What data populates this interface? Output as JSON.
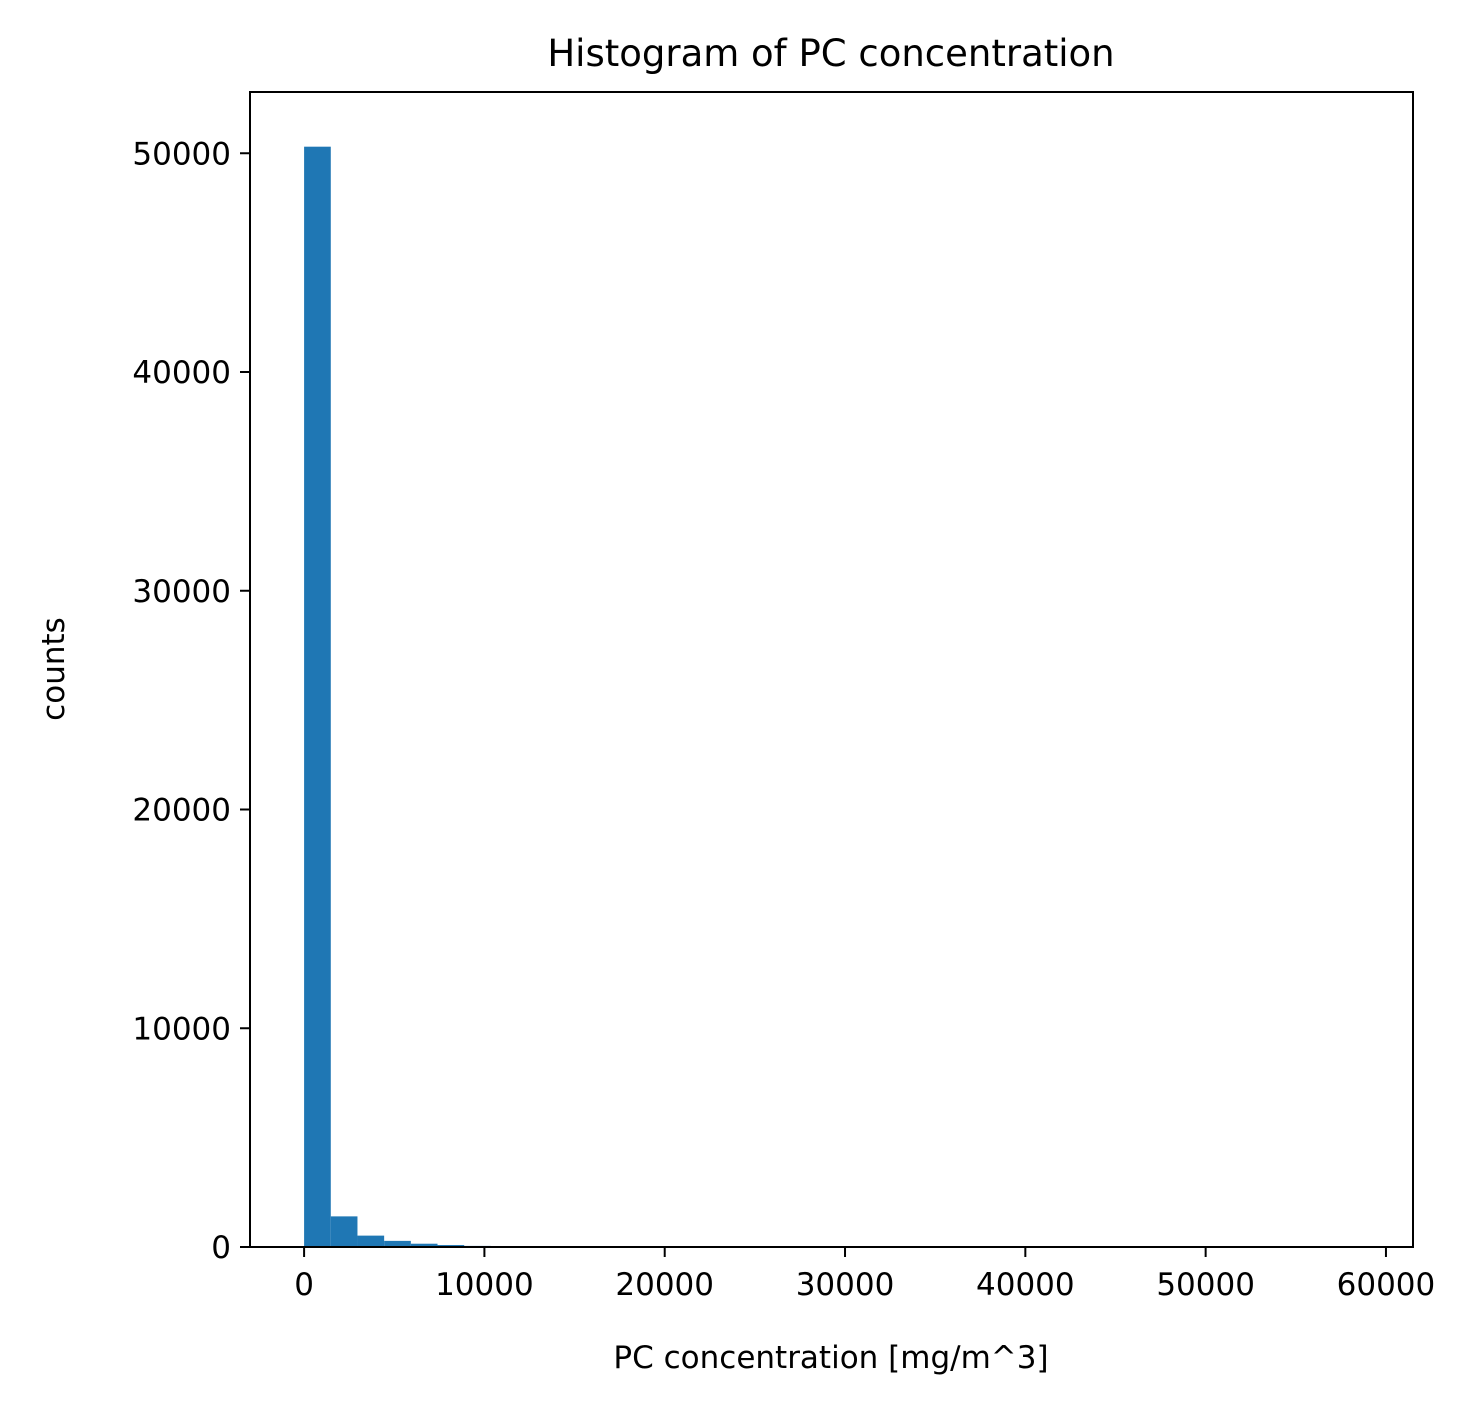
{
  "chart_data": {
    "type": "bar",
    "title": "Histogram of PC concentration",
    "xlabel": "PC concentration [mg/m^3]",
    "ylabel": "counts",
    "xlim": [
      -3000,
      61500
    ],
    "ylim": [
      0,
      52800
    ],
    "grid": false,
    "bar_color": "#1f77b4",
    "x_ticks": [
      {
        "value": 0,
        "label": "0"
      },
      {
        "value": 10000,
        "label": "10000"
      },
      {
        "value": 20000,
        "label": "20000"
      },
      {
        "value": 30000,
        "label": "30000"
      },
      {
        "value": 40000,
        "label": "40000"
      },
      {
        "value": 50000,
        "label": "50000"
      },
      {
        "value": 60000,
        "label": "60000"
      }
    ],
    "y_ticks": [
      {
        "value": 0,
        "label": "0"
      },
      {
        "value": 10000,
        "label": "10000"
      },
      {
        "value": 20000,
        "label": "20000"
      },
      {
        "value": 30000,
        "label": "30000"
      },
      {
        "value": 40000,
        "label": "40000"
      },
      {
        "value": 50000,
        "label": "50000"
      }
    ],
    "bins": [
      {
        "x0": 0,
        "x1": 1480,
        "count": 50300
      },
      {
        "x0": 1480,
        "x1": 2960,
        "count": 1400
      },
      {
        "x0": 2960,
        "x1": 4440,
        "count": 520
      },
      {
        "x0": 4440,
        "x1": 5920,
        "count": 280
      },
      {
        "x0": 5920,
        "x1": 7400,
        "count": 150
      },
      {
        "x0": 7400,
        "x1": 8880,
        "count": 90
      },
      {
        "x0": 8880,
        "x1": 10360,
        "count": 50
      },
      {
        "x0": 10360,
        "x1": 11840,
        "count": 30
      },
      {
        "x0": 11840,
        "x1": 13320,
        "count": 20
      },
      {
        "x0": 13320,
        "x1": 14800,
        "count": 10
      }
    ]
  }
}
